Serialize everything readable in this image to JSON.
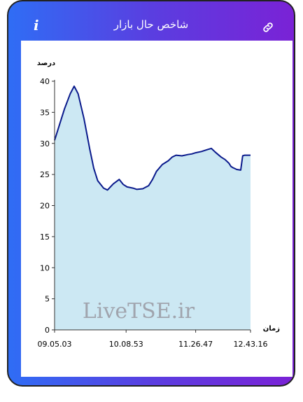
{
  "header": {
    "title": "شاخص حال بازار",
    "info_icon": "info-icon",
    "link_icon": "link-icon",
    "info_glyph": "i"
  },
  "colors": {
    "gradient_start": "#2f6df5",
    "gradient_end": "#7a22d6",
    "line": "#0a1a8c",
    "area": "#cce8f3"
  },
  "chart_data": {
    "type": "area",
    "ylabel": "درصد",
    "xlabel": "زمان",
    "watermark": "LiveTSE.ir",
    "ylim": [
      0,
      40
    ],
    "y_ticks": [
      0,
      5,
      10,
      15,
      20,
      25,
      30,
      35,
      40
    ],
    "x_ticks": [
      "09.05.03",
      "10.08.53",
      "11.26.47",
      "12.43.16"
    ],
    "x_tick_positions": [
      0,
      0.365,
      0.72,
      1.0
    ],
    "x": [
      0,
      0.02,
      0.05,
      0.08,
      0.1,
      0.12,
      0.15,
      0.18,
      0.2,
      0.22,
      0.25,
      0.27,
      0.3,
      0.33,
      0.35,
      0.37,
      0.4,
      0.42,
      0.45,
      0.48,
      0.5,
      0.52,
      0.55,
      0.58,
      0.6,
      0.62,
      0.65,
      0.68,
      0.7,
      0.72,
      0.75,
      0.78,
      0.8,
      0.82,
      0.85,
      0.87,
      0.89,
      0.9,
      0.91,
      0.93,
      0.95,
      0.96,
      0.97,
      1.0
    ],
    "y": [
      30.5,
      32.5,
      35.5,
      38.0,
      39.2,
      38.0,
      34.0,
      29.0,
      26.0,
      24.0,
      22.8,
      22.5,
      23.5,
      24.2,
      23.4,
      23.0,
      22.8,
      22.6,
      22.7,
      23.2,
      24.2,
      25.5,
      26.6,
      27.2,
      27.8,
      28.1,
      28.0,
      28.2,
      28.3,
      28.5,
      28.7,
      29.0,
      29.2,
      28.6,
      27.8,
      27.4,
      26.8,
      26.3,
      26.1,
      25.8,
      25.7,
      28.0,
      28.1,
      28.1
    ]
  }
}
